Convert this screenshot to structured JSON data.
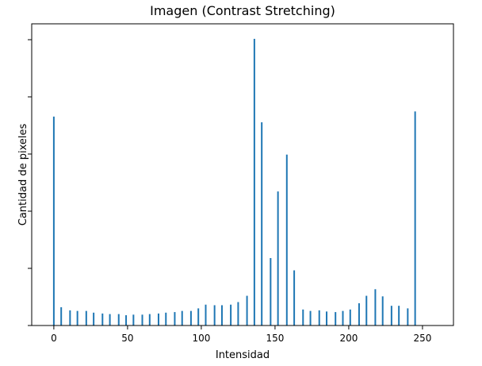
{
  "chart_data": {
    "type": "bar",
    "title": "Imagen (Contrast Stretching)",
    "xlabel": "Intensidad",
    "ylabel": "Cantidad de pixeles",
    "xlim": [
      -15,
      271
    ],
    "ylim": [
      0,
      1000
    ],
    "xticks": [
      0,
      50,
      100,
      150,
      200,
      250
    ],
    "ytick_count": 6,
    "ytick_labels_visible": false,
    "grid": false,
    "bar_color": "#1f77b4",
    "x": [
      0,
      5,
      11,
      16,
      22,
      27,
      33,
      38,
      44,
      49,
      54,
      60,
      65,
      71,
      76,
      82,
      87,
      93,
      98,
      103,
      109,
      114,
      120,
      125,
      131,
      136,
      141,
      147,
      152,
      158,
      163,
      169,
      174,
      180,
      185,
      191,
      196,
      201,
      207,
      212,
      218,
      223,
      229,
      234,
      240,
      245,
      250,
      256
    ],
    "values": [
      731,
      64,
      53,
      51,
      51,
      45,
      42,
      40,
      40,
      36,
      38,
      38,
      40,
      42,
      45,
      47,
      51,
      51,
      60,
      73,
      71,
      71,
      73,
      82,
      104,
      1003,
      711,
      236,
      469,
      598,
      193,
      56,
      51,
      53,
      49,
      47,
      51,
      56,
      78,
      104,
      127,
      102,
      69,
      69,
      60,
      749,
      0,
      0
    ]
  }
}
